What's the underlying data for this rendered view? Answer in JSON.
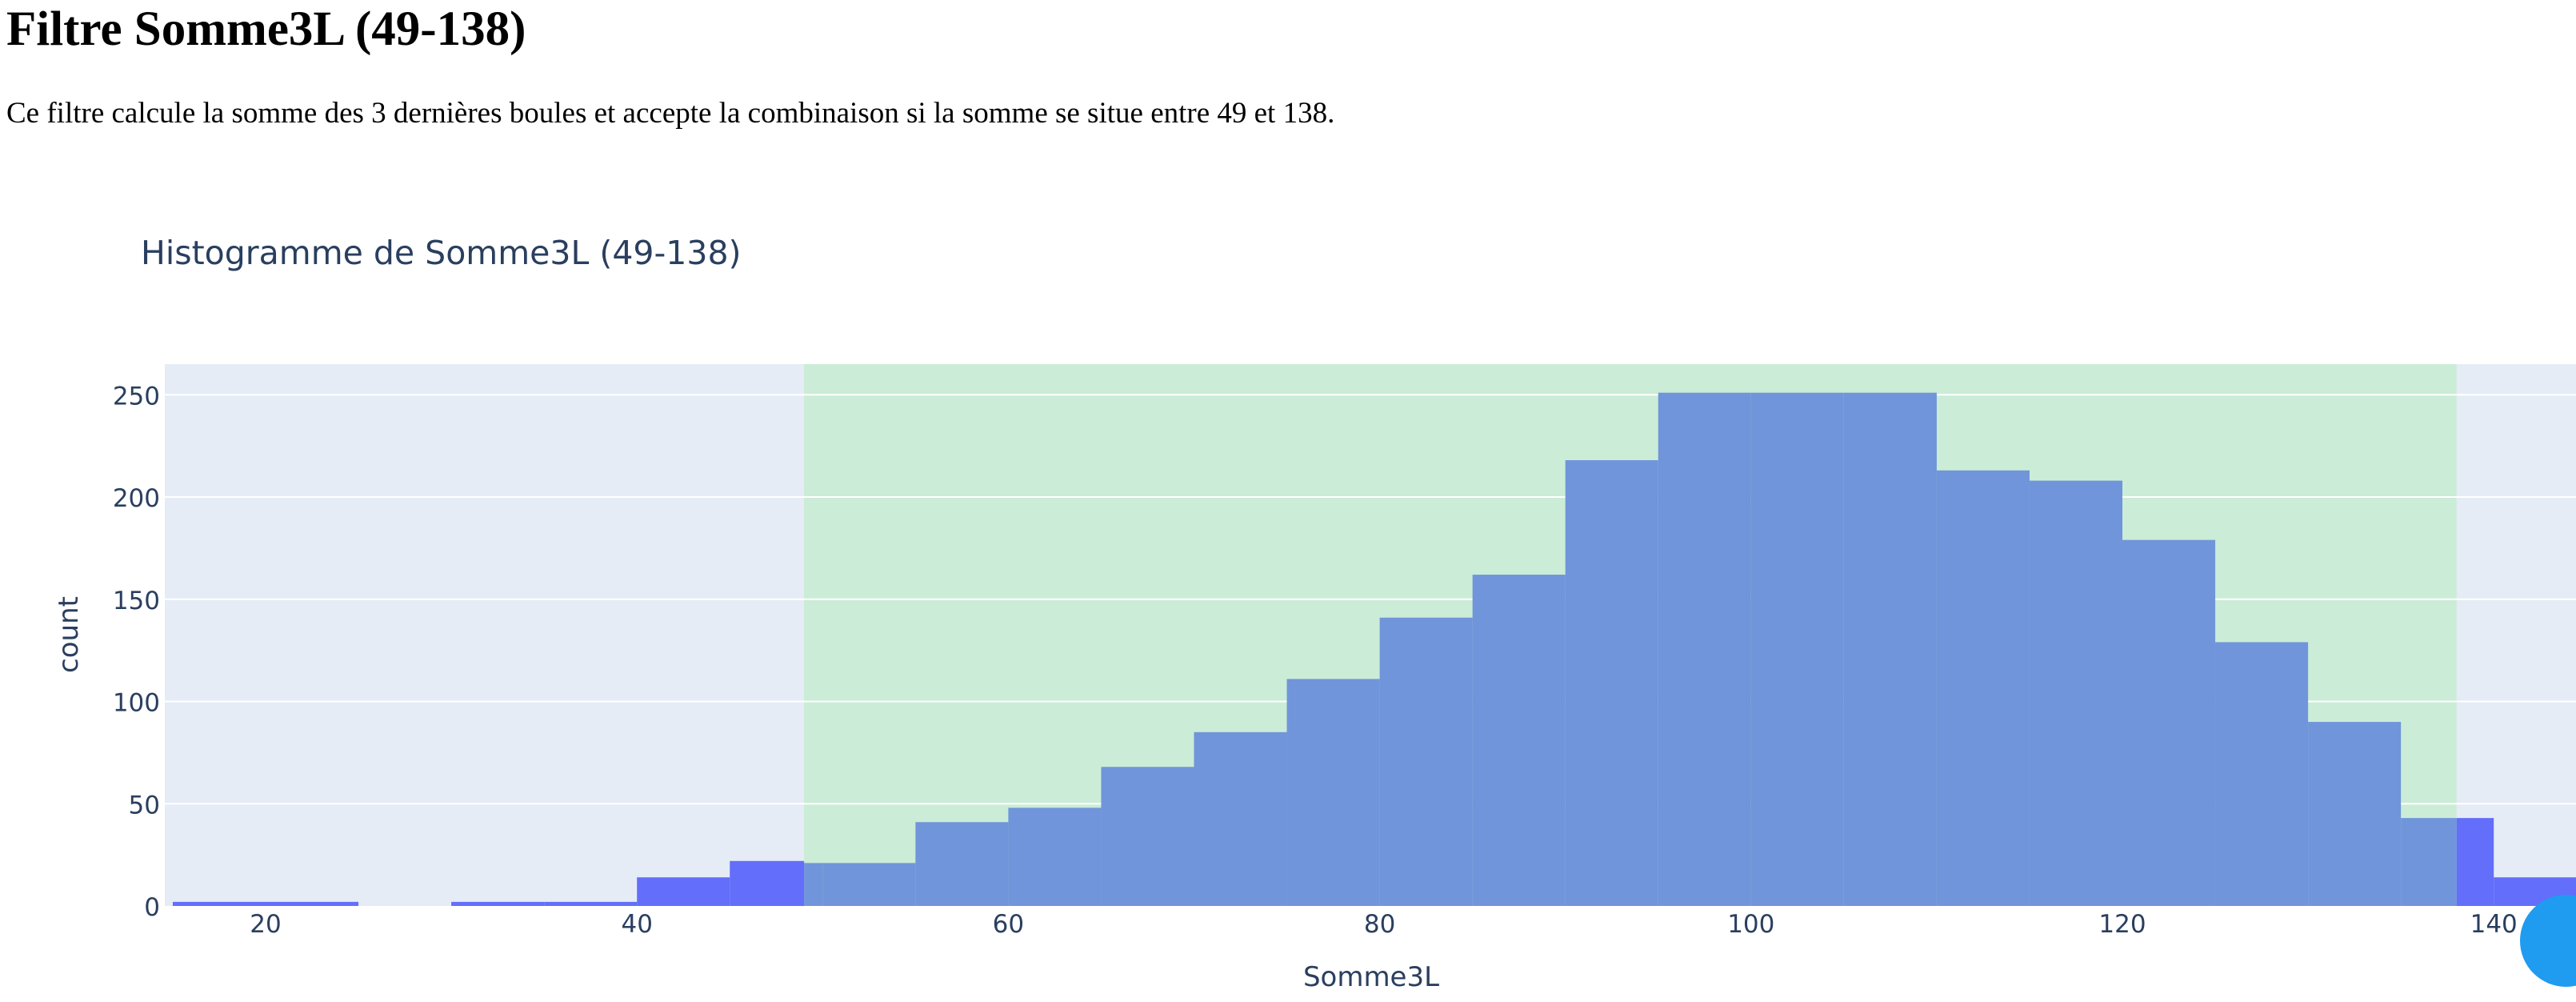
{
  "page": {
    "title": "Filtre Somme3L (49-138)",
    "description": "Ce filtre calcule la somme des 3 dernières boules et accepte la combinaison si la somme se situe entre 49 et 138."
  },
  "chart_data": {
    "type": "bar",
    "title": "Histogramme de Somme3L (49-138)",
    "xlabel": "Somme3L",
    "ylabel": "count",
    "xlim": [
      14.5,
      145
    ],
    "ylim": [
      0,
      263
    ],
    "x_ticks": [
      20,
      40,
      60,
      80,
      100,
      120,
      140
    ],
    "y_ticks": [
      0,
      50,
      100,
      150,
      200,
      250
    ],
    "grid": true,
    "legend": "none",
    "highlight_range": [
      49,
      138
    ],
    "bin_width": 5,
    "bins": [
      {
        "x0": 15,
        "x1": 20,
        "count": 2
      },
      {
        "x0": 20,
        "x1": 25,
        "count": 2
      },
      {
        "x0": 30,
        "x1": 35,
        "count": 2
      },
      {
        "x0": 35,
        "x1": 40,
        "count": 2
      },
      {
        "x0": 40,
        "x1": 45,
        "count": 14
      },
      {
        "x0": 45,
        "x1": 49,
        "count": 22
      },
      {
        "x0": 49,
        "x1": 50,
        "count": 21
      },
      {
        "x0": 50,
        "x1": 55,
        "count": 21
      },
      {
        "x0": 55,
        "x1": 60,
        "count": 41
      },
      {
        "x0": 60,
        "x1": 65,
        "count": 48
      },
      {
        "x0": 65,
        "x1": 70,
        "count": 68
      },
      {
        "x0": 70,
        "x1": 75,
        "count": 85
      },
      {
        "x0": 75,
        "x1": 80,
        "count": 111
      },
      {
        "x0": 80,
        "x1": 85,
        "count": 141
      },
      {
        "x0": 85,
        "x1": 90,
        "count": 162
      },
      {
        "x0": 90,
        "x1": 95,
        "count": 218
      },
      {
        "x0": 95,
        "x1": 100,
        "count": 251
      },
      {
        "x0": 100,
        "x1": 105,
        "count": 251
      },
      {
        "x0": 105,
        "x1": 110,
        "count": 251
      },
      {
        "x0": 110,
        "x1": 115,
        "count": 213
      },
      {
        "x0": 115,
        "x1": 120,
        "count": 208
      },
      {
        "x0": 120,
        "x1": 125,
        "count": 179
      },
      {
        "x0": 125,
        "x1": 130,
        "count": 129
      },
      {
        "x0": 130,
        "x1": 135,
        "count": 90
      },
      {
        "x0": 135,
        "x1": 138,
        "count": 43
      },
      {
        "x0": 138,
        "x1": 140,
        "count": 43
      },
      {
        "x0": 140,
        "x1": 145,
        "count": 14
      }
    ],
    "colors": {
      "plot_background": "#e5ecf6",
      "highlight_band": "#cbecd7",
      "bar_outside": "#636efa",
      "bar_inside": "#7095da",
      "grid": "#ffffff",
      "text": "#2a3f5f"
    }
  }
}
